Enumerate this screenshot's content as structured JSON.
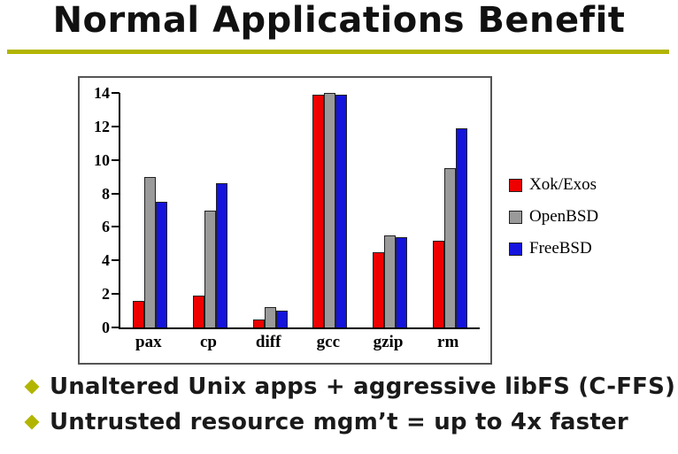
{
  "title": "Normal Applications Benefit",
  "accent": {
    "rule_color": "#b2b500",
    "bullet_color": "#b2b500"
  },
  "bullets": [
    {
      "text": "Unaltered Unix apps + aggressive libFS (C-FFS)"
    },
    {
      "text": "Untrusted resource mgm’t = up to 4x faster"
    }
  ],
  "chart_data": {
    "type": "bar",
    "categories": [
      "pax",
      "cp",
      "diff",
      "gcc",
      "gzip",
      "rm"
    ],
    "series": [
      {
        "name": "Xok/Exos",
        "color": "#ee0000",
        "values": [
          1.6,
          1.9,
          0.5,
          13.9,
          4.5,
          5.2
        ]
      },
      {
        "name": "OpenBSD",
        "color": "#9a9a9a",
        "values": [
          9.0,
          7.0,
          1.2,
          14.0,
          5.5,
          9.5
        ]
      },
      {
        "name": "FreeBSD",
        "color": "#1414dd",
        "values": [
          7.5,
          8.6,
          1.0,
          13.9,
          5.4,
          11.9
        ]
      }
    ],
    "ylim": [
      0,
      14
    ],
    "yticks": [
      0,
      2,
      4,
      6,
      8,
      10,
      12,
      14
    ],
    "grid": false,
    "legend_position": "right"
  }
}
